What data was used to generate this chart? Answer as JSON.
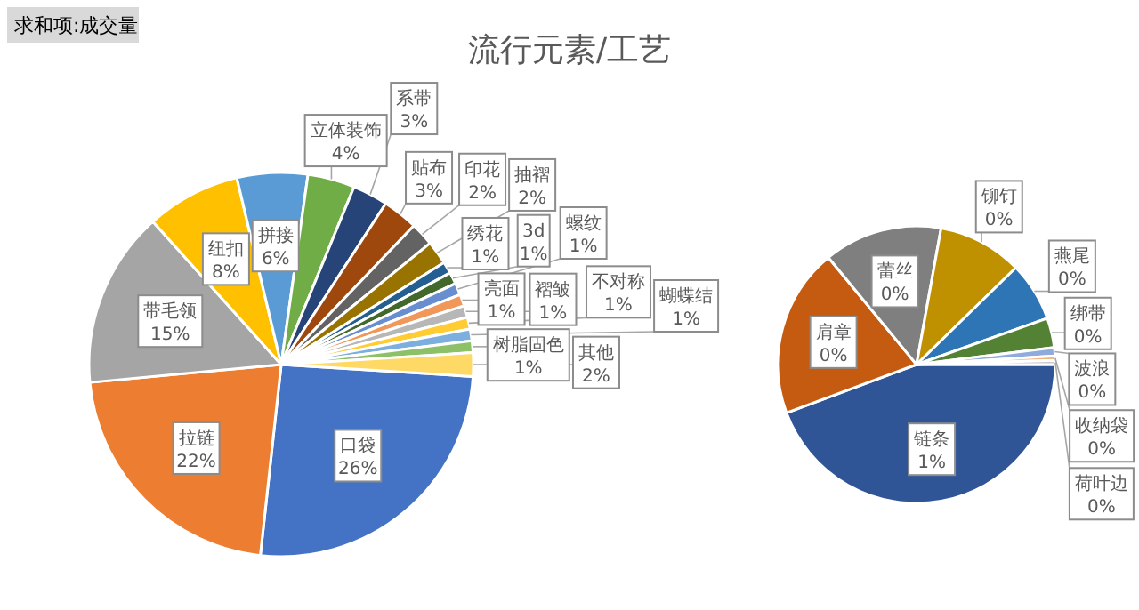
{
  "chart_data": [
    {
      "type": "pie",
      "title": "流行元素/工艺",
      "annotations": [
        "求和项:成交量"
      ],
      "categories": [
        "口袋",
        "拉链",
        "带毛领",
        "纽扣",
        "拼接",
        "立体装饰",
        "系带",
        "贴布",
        "印花",
        "抽褶",
        "绣花",
        "3d",
        "螺纹",
        "亮面",
        "褶皱",
        "不对称",
        "蝴蝶结",
        "树脂固色",
        "其他"
      ],
      "values": [
        26,
        22,
        15,
        8,
        6,
        4,
        3,
        3,
        2,
        2,
        1,
        1,
        1,
        1,
        1,
        1,
        1,
        1,
        2
      ],
      "value_labels": [
        "26%",
        "22%",
        "15%",
        "8%",
        "6%",
        "4%",
        "3%",
        "3%",
        "2%",
        "2%",
        "1%",
        "1%",
        "1%",
        "1%",
        "1%",
        "1%",
        "1%",
        "1%",
        "2%"
      ],
      "colors": [
        "#4472c4",
        "#ed7d31",
        "#a5a5a5",
        "#ffc000",
        "#5b9bd5",
        "#70ad47",
        "#264478",
        "#9e480e",
        "#636363",
        "#997300",
        "#255e91",
        "#43682b",
        "#698ed0",
        "#f1975a",
        "#b7b7b7",
        "#ffcd33",
        "#7cafdd",
        "#8cc168",
        "#ffd966"
      ]
    },
    {
      "type": "pie",
      "categories": [
        "链条",
        "肩章",
        "蕾丝",
        "铆钉",
        "燕尾",
        "绑带",
        "波浪",
        "收纳袋",
        "荷叶边"
      ],
      "values": [
        0.9,
        0.4,
        0.28,
        0.2,
        0.14,
        0.07,
        0.02,
        0.01,
        0.01
      ],
      "value_labels": [
        "1%",
        "0%",
        "0%",
        "0%",
        "0%",
        "0%",
        "0%",
        "0%",
        "0%"
      ],
      "colors": [
        "#2f5597",
        "#c55a11",
        "#7f7f7f",
        "#bf9000",
        "#2e75b6",
        "#548235",
        "#8faadc",
        "#f4b183",
        "#c9c9c9"
      ]
    }
  ]
}
